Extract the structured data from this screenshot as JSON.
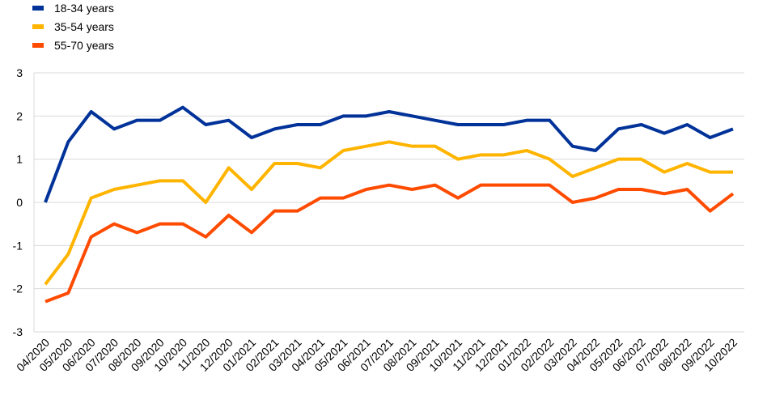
{
  "chart_data": {
    "type": "line",
    "categories": [
      "04/2020",
      "05/2020",
      "06/2020",
      "07/2020",
      "08/2020",
      "09/2020",
      "10/2020",
      "11/2020",
      "12/2020",
      "01/2021",
      "02/2021",
      "03/2021",
      "04/2021",
      "05/2021",
      "06/2021",
      "07/2021",
      "08/2021",
      "09/2021",
      "10/2021",
      "11/2021",
      "12/2021",
      "01/2022",
      "02/2022",
      "03/2022",
      "04/2022",
      "05/2022",
      "06/2022",
      "07/2022",
      "08/2022",
      "09/2022",
      "10/2022"
    ],
    "series": [
      {
        "name": "18-34 years",
        "color": "#003299",
        "values": [
          0,
          1.4,
          2.1,
          1.7,
          1.9,
          1.9,
          2.2,
          1.8,
          1.9,
          1.5,
          1.7,
          1.8,
          1.8,
          2.0,
          2.0,
          2.1,
          2.0,
          1.9,
          1.8,
          1.8,
          1.8,
          1.9,
          1.9,
          1.3,
          1.2,
          1.7,
          1.8,
          1.6,
          1.8,
          1.5,
          1.7
        ]
      },
      {
        "name": "35-54 years",
        "color": "#FFB400",
        "values": [
          -1.9,
          -1.2,
          0.1,
          0.3,
          0.4,
          0.5,
          0.5,
          0.0,
          0.8,
          0.3,
          0.9,
          0.9,
          0.8,
          1.2,
          1.3,
          1.4,
          1.3,
          1.3,
          1.0,
          1.1,
          1.1,
          1.2,
          1.0,
          0.6,
          0.8,
          1.0,
          1.0,
          0.7,
          0.9,
          0.7,
          0.7
        ]
      },
      {
        "name": "55-70 years",
        "color": "#FF4B00",
        "values": [
          -2.3,
          -2.1,
          -0.8,
          -0.5,
          -0.7,
          -0.5,
          -0.5,
          -0.8,
          -0.3,
          -0.7,
          -0.2,
          -0.2,
          0.1,
          0.1,
          0.3,
          0.4,
          0.3,
          0.4,
          0.1,
          0.4,
          0.4,
          0.4,
          0.4,
          0.0,
          0.1,
          0.3,
          0.3,
          0.2,
          0.3,
          -0.2,
          0.2
        ]
      }
    ],
    "ylim": [
      -3,
      3
    ],
    "yticks": [
      -3,
      -2,
      -1,
      0,
      1,
      2,
      3
    ],
    "grid": true,
    "legend": "top-left"
  }
}
